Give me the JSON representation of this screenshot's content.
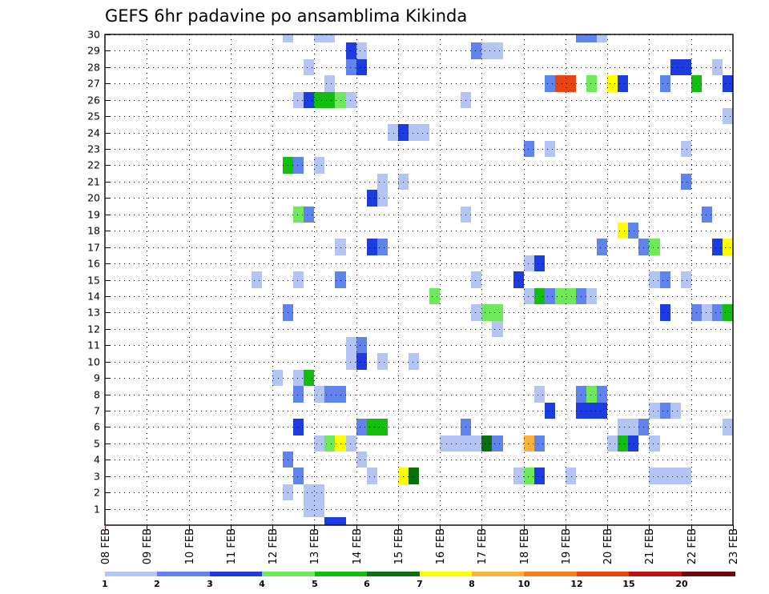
{
  "chart_data": {
    "type": "heatmap",
    "title": "GEFS 6hr padavine po ansamblima Kikinda",
    "xlabel": "",
    "ylabel": "",
    "x_ticks": [
      "08 FEB",
      "09 FEB",
      "10 FEB",
      "11 FEB",
      "12 FEB",
      "13 FEB",
      "14 FEB",
      "15 FEB",
      "16 FEB",
      "17 FEB",
      "18 FEB",
      "19 FEB",
      "20 FEB",
      "21 FEB",
      "22 FEB",
      "23 FEB"
    ],
    "x_unit": "day",
    "x_step": 0.25,
    "xlim": [
      0,
      15
    ],
    "y_ticks": [
      1,
      2,
      3,
      4,
      5,
      6,
      7,
      8,
      9,
      10,
      11,
      12,
      13,
      14,
      15,
      16,
      17,
      18,
      19,
      20,
      21,
      22,
      23,
      24,
      25,
      26,
      27,
      28,
      29,
      30
    ],
    "ylim": [
      0,
      30
    ],
    "grid": true,
    "colorbar": {
      "labels": [
        "1",
        "2",
        "3",
        "4",
        "5",
        "6",
        "7",
        "8",
        "10",
        "12",
        "15",
        "20"
      ],
      "bins": [
        {
          "min": 1,
          "max": 2,
          "color": "#b4c4f4"
        },
        {
          "min": 2,
          "max": 3,
          "color": "#6183ec"
        },
        {
          "min": 3,
          "max": 4,
          "color": "#1c3ce0"
        },
        {
          "min": 4,
          "max": 5,
          "color": "#70e85c"
        },
        {
          "min": 5,
          "max": 6,
          "color": "#12bd10"
        },
        {
          "min": 6,
          "max": 7,
          "color": "#0b6e10"
        },
        {
          "min": 7,
          "max": 8,
          "color": "#ffff00"
        },
        {
          "min": 8,
          "max": 10,
          "color": "#fbb240"
        },
        {
          "min": 10,
          "max": 12,
          "color": "#f47f18"
        },
        {
          "min": 12,
          "max": 15,
          "color": "#e84410"
        },
        {
          "min": 15,
          "max": 20,
          "color": "#c01010"
        },
        {
          "min": 20,
          "max": 30,
          "color": "#6a0a0a"
        }
      ]
    },
    "cells_note": "each cell: [ensemble_member, day_offset_from_08_FEB, precipitation_bin_index]",
    "cells": [
      [
        30,
        4.25,
        0
      ],
      [
        30,
        5.0,
        0
      ],
      [
        30,
        5.25,
        0
      ],
      [
        30,
        11.25,
        1
      ],
      [
        30,
        11.5,
        1
      ],
      [
        30,
        11.75,
        0
      ],
      [
        29,
        5.75,
        2
      ],
      [
        29,
        6.0,
        0
      ],
      [
        29,
        8.75,
        1
      ],
      [
        29,
        9.0,
        0
      ],
      [
        29,
        9.25,
        0
      ],
      [
        28,
        4.75,
        0
      ],
      [
        28,
        5.75,
        1
      ],
      [
        28,
        6.0,
        2
      ],
      [
        28,
        13.5,
        2
      ],
      [
        28,
        13.75,
        2
      ],
      [
        28,
        14.5,
        0
      ],
      [
        27,
        5.25,
        0
      ],
      [
        27,
        10.5,
        1
      ],
      [
        27,
        10.75,
        9
      ],
      [
        27,
        11.0,
        9
      ],
      [
        27,
        11.5,
        3
      ],
      [
        27,
        12.0,
        6
      ],
      [
        27,
        12.25,
        2
      ],
      [
        27,
        13.25,
        1
      ],
      [
        27,
        14.0,
        4
      ],
      [
        27,
        14.75,
        2
      ],
      [
        26,
        4.5,
        0
      ],
      [
        26,
        4.75,
        2
      ],
      [
        26,
        5.0,
        4
      ],
      [
        26,
        5.25,
        4
      ],
      [
        26,
        5.5,
        3
      ],
      [
        26,
        5.75,
        0
      ],
      [
        26,
        8.5,
        0
      ],
      [
        25,
        14.75,
        0
      ],
      [
        24,
        6.75,
        0
      ],
      [
        24,
        7.0,
        2
      ],
      [
        24,
        7.25,
        0
      ],
      [
        24,
        7.5,
        0
      ],
      [
        23,
        10.0,
        1
      ],
      [
        23,
        10.5,
        0
      ],
      [
        23,
        13.75,
        0
      ],
      [
        22,
        4.25,
        4
      ],
      [
        22,
        4.5,
        1
      ],
      [
        22,
        5.0,
        0
      ],
      [
        21,
        6.5,
        0
      ],
      [
        21,
        7.0,
        0
      ],
      [
        21,
        13.75,
        1
      ],
      [
        20,
        6.25,
        2
      ],
      [
        20,
        6.5,
        0
      ],
      [
        19,
        4.5,
        3
      ],
      [
        19,
        4.75,
        1
      ],
      [
        19,
        8.5,
        0
      ],
      [
        19,
        14.25,
        1
      ],
      [
        18,
        12.25,
        6
      ],
      [
        18,
        12.5,
        1
      ],
      [
        17,
        5.5,
        0
      ],
      [
        17,
        6.25,
        2
      ],
      [
        17,
        6.5,
        1
      ],
      [
        17,
        11.75,
        1
      ],
      [
        17,
        12.75,
        1
      ],
      [
        17,
        13.0,
        3
      ],
      [
        17,
        14.5,
        2
      ],
      [
        17,
        14.75,
        6
      ],
      [
        16,
        10.0,
        0
      ],
      [
        16,
        10.25,
        2
      ],
      [
        15,
        3.5,
        0
      ],
      [
        15,
        4.5,
        0
      ],
      [
        15,
        5.5,
        1
      ],
      [
        15,
        8.75,
        0
      ],
      [
        15,
        9.75,
        2
      ],
      [
        15,
        13.0,
        0
      ],
      [
        15,
        13.25,
        1
      ],
      [
        15,
        13.75,
        0
      ],
      [
        14,
        7.75,
        3
      ],
      [
        14,
        10.0,
        0
      ],
      [
        14,
        10.25,
        4
      ],
      [
        14,
        10.5,
        1
      ],
      [
        14,
        10.75,
        3
      ],
      [
        14,
        11.0,
        3
      ],
      [
        14,
        11.25,
        1
      ],
      [
        14,
        11.5,
        0
      ],
      [
        13,
        4.25,
        1
      ],
      [
        13,
        8.75,
        0
      ],
      [
        13,
        9.0,
        3
      ],
      [
        13,
        9.25,
        3
      ],
      [
        13,
        13.25,
        2
      ],
      [
        13,
        14.0,
        1
      ],
      [
        13,
        14.25,
        0
      ],
      [
        13,
        14.5,
        1
      ],
      [
        13,
        14.75,
        4
      ],
      [
        12,
        9.25,
        0
      ],
      [
        11,
        5.75,
        0
      ],
      [
        11,
        6.0,
        1
      ],
      [
        10,
        5.75,
        0
      ],
      [
        10,
        6.0,
        2
      ],
      [
        10,
        6.5,
        0
      ],
      [
        10,
        7.25,
        0
      ],
      [
        9,
        4.0,
        0
      ],
      [
        9,
        4.5,
        0
      ],
      [
        9,
        4.75,
        4
      ],
      [
        8,
        4.5,
        1
      ],
      [
        8,
        5.0,
        0
      ],
      [
        8,
        5.25,
        1
      ],
      [
        8,
        5.5,
        1
      ],
      [
        8,
        10.25,
        0
      ],
      [
        8,
        11.25,
        1
      ],
      [
        8,
        11.5,
        3
      ],
      [
        8,
        11.75,
        1
      ],
      [
        7,
        10.5,
        2
      ],
      [
        7,
        11.25,
        2
      ],
      [
        7,
        11.5,
        2
      ],
      [
        7,
        11.75,
        2
      ],
      [
        7,
        13.0,
        0
      ],
      [
        7,
        13.25,
        1
      ],
      [
        7,
        13.5,
        0
      ],
      [
        6,
        4.5,
        2
      ],
      [
        6,
        6.0,
        1
      ],
      [
        6,
        6.25,
        4
      ],
      [
        6,
        6.5,
        4
      ],
      [
        6,
        8.5,
        1
      ],
      [
        6,
        12.25,
        0
      ],
      [
        6,
        12.5,
        0
      ],
      [
        6,
        12.75,
        1
      ],
      [
        6,
        14.75,
        0
      ],
      [
        5,
        5.0,
        0
      ],
      [
        5,
        5.25,
        3
      ],
      [
        5,
        5.5,
        6
      ],
      [
        5,
        5.75,
        0
      ],
      [
        5,
        8.0,
        0
      ],
      [
        5,
        8.25,
        0
      ],
      [
        5,
        8.5,
        0
      ],
      [
        5,
        8.75,
        0
      ],
      [
        5,
        9.0,
        5
      ],
      [
        5,
        9.25,
        1
      ],
      [
        5,
        10.0,
        7
      ],
      [
        5,
        10.25,
        1
      ],
      [
        5,
        12.0,
        0
      ],
      [
        5,
        12.25,
        4
      ],
      [
        5,
        12.5,
        2
      ],
      [
        5,
        13.0,
        0
      ],
      [
        4,
        4.25,
        1
      ],
      [
        4,
        6.0,
        0
      ],
      [
        3,
        4.5,
        1
      ],
      [
        3,
        6.25,
        0
      ],
      [
        3,
        7.0,
        6
      ],
      [
        3,
        7.25,
        5
      ],
      [
        3,
        9.75,
        0
      ],
      [
        3,
        10.0,
        3
      ],
      [
        3,
        10.25,
        2
      ],
      [
        3,
        11.0,
        0
      ],
      [
        3,
        13.0,
        0
      ],
      [
        3,
        13.25,
        0
      ],
      [
        3,
        13.5,
        0
      ],
      [
        3,
        13.75,
        0
      ],
      [
        2,
        4.25,
        0
      ],
      [
        2,
        4.75,
        0
      ],
      [
        2,
        5.0,
        0
      ],
      [
        1,
        4.75,
        0
      ],
      [
        1,
        5.0,
        0
      ],
      [
        0,
        5.25,
        2
      ],
      [
        0,
        5.5,
        2
      ]
    ]
  }
}
